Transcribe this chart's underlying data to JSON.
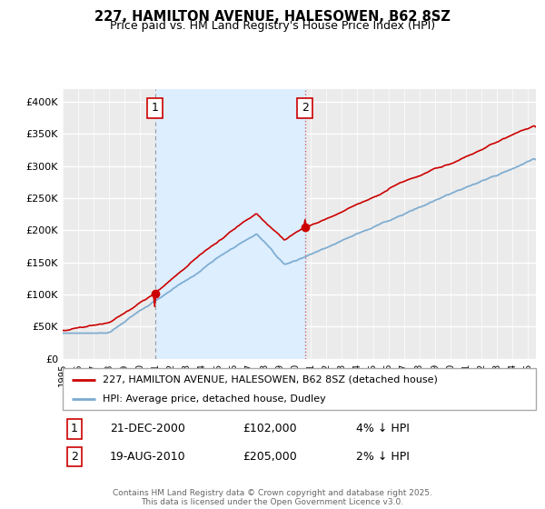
{
  "title": "227, HAMILTON AVENUE, HALESOWEN, B62 8SZ",
  "subtitle": "Price paid vs. HM Land Registry's House Price Index (HPI)",
  "red_label": "227, HAMILTON AVENUE, HALESOWEN, B62 8SZ (detached house)",
  "blue_label": "HPI: Average price, detached house, Dudley",
  "marker1_date": "21-DEC-2000",
  "marker1_price": 102000,
  "marker1_pct": "4% ↓ HPI",
  "marker2_date": "19-AUG-2010",
  "marker2_price": 205000,
  "marker2_pct": "2% ↓ HPI",
  "footnote": "Contains HM Land Registry data © Crown copyright and database right 2025.\nThis data is licensed under the Open Government Licence v3.0.",
  "ylim": [
    0,
    420000
  ],
  "yticks": [
    0,
    50000,
    100000,
    150000,
    200000,
    250000,
    300000,
    350000,
    400000
  ],
  "ytick_labels": [
    "£0",
    "£50K",
    "£100K",
    "£150K",
    "£200K",
    "£250K",
    "£300K",
    "£350K",
    "£400K"
  ],
  "red_color": "#cc0000",
  "blue_color": "#7aaad0",
  "background_color": "#ffffff",
  "plot_bg_color": "#ebebeb",
  "grid_color": "#ffffff",
  "shade_color": "#ddeeff",
  "t_m1": 2000.96,
  "t_m2": 2010.625
}
